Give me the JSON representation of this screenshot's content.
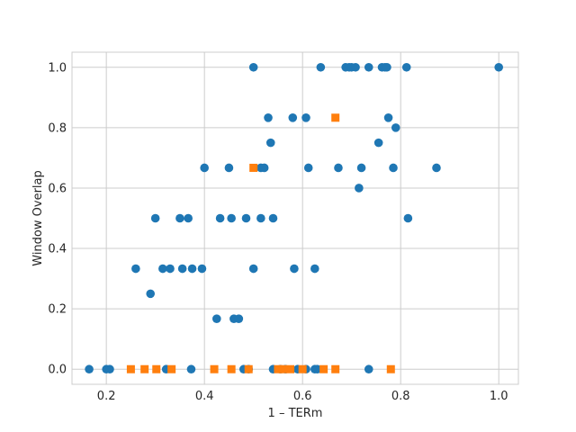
{
  "chart_data": {
    "type": "scatter",
    "title": "",
    "xlabel": "1 – TERm",
    "ylabel": "Window Overlap",
    "xlim": [
      0.13,
      1.04
    ],
    "ylim": [
      -0.05,
      1.05
    ],
    "xticks": [
      0.2,
      0.4,
      0.6,
      0.8,
      1.0
    ],
    "xtick_labels": [
      "0.2",
      "0.4",
      "0.6",
      "0.8",
      "1.0"
    ],
    "yticks": [
      0.0,
      0.2,
      0.4,
      0.6,
      0.8,
      1.0
    ],
    "ytick_labels": [
      "0.0",
      "0.2",
      "0.4",
      "0.6",
      "0.8",
      "1.0"
    ],
    "grid": true,
    "legend": "none",
    "series": [
      {
        "marker": "circle",
        "color": "#1f77b4",
        "points": [
          [
            0.165,
            0.0
          ],
          [
            0.2,
            0.0
          ],
          [
            0.207,
            0.0
          ],
          [
            0.322,
            0.0
          ],
          [
            0.373,
            0.0
          ],
          [
            0.48,
            0.0
          ],
          [
            0.49,
            0.0
          ],
          [
            0.54,
            0.0
          ],
          [
            0.555,
            0.0
          ],
          [
            0.565,
            0.0
          ],
          [
            0.59,
            0.0
          ],
          [
            0.607,
            0.0
          ],
          [
            0.625,
            0.0
          ],
          [
            0.63,
            0.0
          ],
          [
            0.735,
            0.0
          ],
          [
            0.425,
            0.167
          ],
          [
            0.46,
            0.167
          ],
          [
            0.47,
            0.167
          ],
          [
            0.29,
            0.25
          ],
          [
            0.26,
            0.333
          ],
          [
            0.315,
            0.333
          ],
          [
            0.33,
            0.333
          ],
          [
            0.355,
            0.333
          ],
          [
            0.375,
            0.333
          ],
          [
            0.395,
            0.333
          ],
          [
            0.5,
            0.333
          ],
          [
            0.583,
            0.333
          ],
          [
            0.625,
            0.333
          ],
          [
            0.3,
            0.5
          ],
          [
            0.35,
            0.5
          ],
          [
            0.367,
            0.5
          ],
          [
            0.432,
            0.5
          ],
          [
            0.455,
            0.5
          ],
          [
            0.485,
            0.5
          ],
          [
            0.515,
            0.5
          ],
          [
            0.54,
            0.5
          ],
          [
            0.815,
            0.5
          ],
          [
            0.715,
            0.6
          ],
          [
            0.4,
            0.667
          ],
          [
            0.45,
            0.667
          ],
          [
            0.515,
            0.667
          ],
          [
            0.522,
            0.667
          ],
          [
            0.612,
            0.667
          ],
          [
            0.673,
            0.667
          ],
          [
            0.72,
            0.667
          ],
          [
            0.785,
            0.667
          ],
          [
            0.873,
            0.667
          ],
          [
            0.535,
            0.75
          ],
          [
            0.755,
            0.75
          ],
          [
            0.79,
            0.8
          ],
          [
            0.53,
            0.833
          ],
          [
            0.58,
            0.833
          ],
          [
            0.607,
            0.833
          ],
          [
            0.775,
            0.833
          ],
          [
            0.5,
            1.0
          ],
          [
            0.637,
            1.0
          ],
          [
            0.688,
            1.0
          ],
          [
            0.695,
            1.0
          ],
          [
            0.7,
            1.0
          ],
          [
            0.708,
            1.0
          ],
          [
            0.735,
            1.0
          ],
          [
            0.762,
            1.0
          ],
          [
            0.768,
            1.0
          ],
          [
            0.772,
            1.0
          ],
          [
            0.812,
            1.0
          ],
          [
            1.0,
            1.0
          ]
        ]
      },
      {
        "marker": "square",
        "color": "#ff7f0e",
        "points": [
          [
            0.25,
            0.0
          ],
          [
            0.278,
            0.0
          ],
          [
            0.302,
            0.0
          ],
          [
            0.333,
            0.0
          ],
          [
            0.42,
            0.0
          ],
          [
            0.455,
            0.0
          ],
          [
            0.49,
            0.0
          ],
          [
            0.55,
            0.0
          ],
          [
            0.56,
            0.0
          ],
          [
            0.575,
            0.0
          ],
          [
            0.6,
            0.0
          ],
          [
            0.643,
            0.0
          ],
          [
            0.667,
            0.0
          ],
          [
            0.78,
            0.0
          ],
          [
            0.5,
            0.667
          ],
          [
            0.667,
            0.833
          ]
        ]
      }
    ]
  }
}
